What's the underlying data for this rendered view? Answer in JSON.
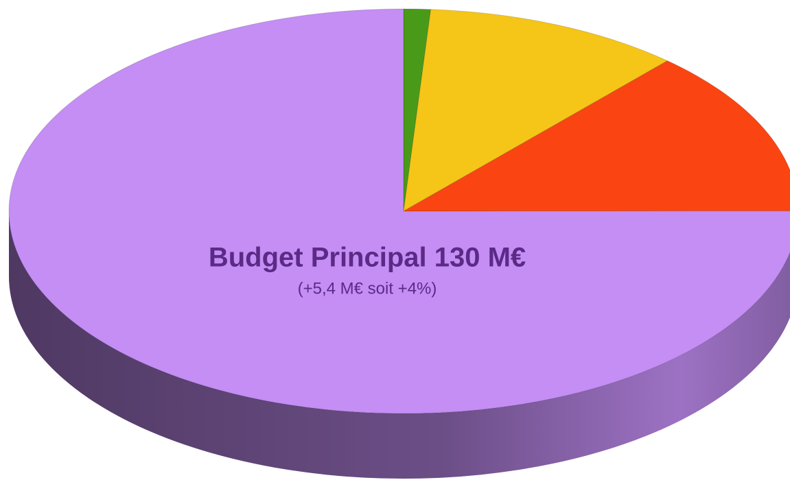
{
  "chart_data": {
    "type": "pie",
    "categories": [
      null,
      null,
      null,
      "Budget Principal 130 M€"
    ],
    "values": [
      1.9,
      18.3,
      23.1,
      130
    ],
    "colors": [
      "#4a9a1a",
      "#f5c518",
      "#fa4512",
      "#c48ef5"
    ],
    "annotation": "(+5,4 M€ soit +4%)"
  }
}
